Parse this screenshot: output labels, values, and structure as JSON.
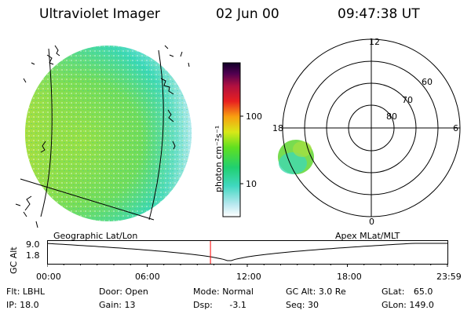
{
  "header": {
    "title": "Ultraviolet Imager",
    "date": "02 Jun 00",
    "time": "09:47:38 UT"
  },
  "colorbar": {
    "unit_label": "photon cm⁻²s⁻¹",
    "ticks": [
      "100",
      "10"
    ]
  },
  "polar_plot": {
    "mlt_labels": [
      "12",
      "18",
      "6",
      "0"
    ],
    "lat_labels": [
      "60",
      "70",
      "80"
    ]
  },
  "timeline": {
    "left_caption": "Geographic Lat/Lon",
    "right_caption": "Apex MLat/MLT",
    "axis_label": "GC Alt",
    "y_ticks": [
      "9.0",
      "1.8"
    ],
    "x_ticks": [
      "00:00",
      "06:00",
      "12:00",
      "18:00",
      "23:59"
    ],
    "current_time_fraction": 0.4081,
    "marker_color": "#ff0000"
  },
  "info_rows": [
    [
      {
        "label": "Flt:",
        "value": "LBHL"
      },
      {
        "label": "Door:",
        "value": "Open"
      },
      {
        "label": "Mode:",
        "value": "Normal"
      },
      {
        "label": "GC Alt:",
        "value": "3.0 Re"
      },
      {
        "label": "GLat:",
        "value": "65.0"
      }
    ],
    [
      {
        "label": "IP:",
        "value": "18.0"
      },
      {
        "label": "Gain:",
        "value": "13"
      },
      {
        "label": "Dsp:",
        "value": "-3.1"
      },
      {
        "label": "Seq:",
        "value": "30"
      },
      {
        "label": "GLon:",
        "value": "149.0"
      }
    ]
  ]
}
